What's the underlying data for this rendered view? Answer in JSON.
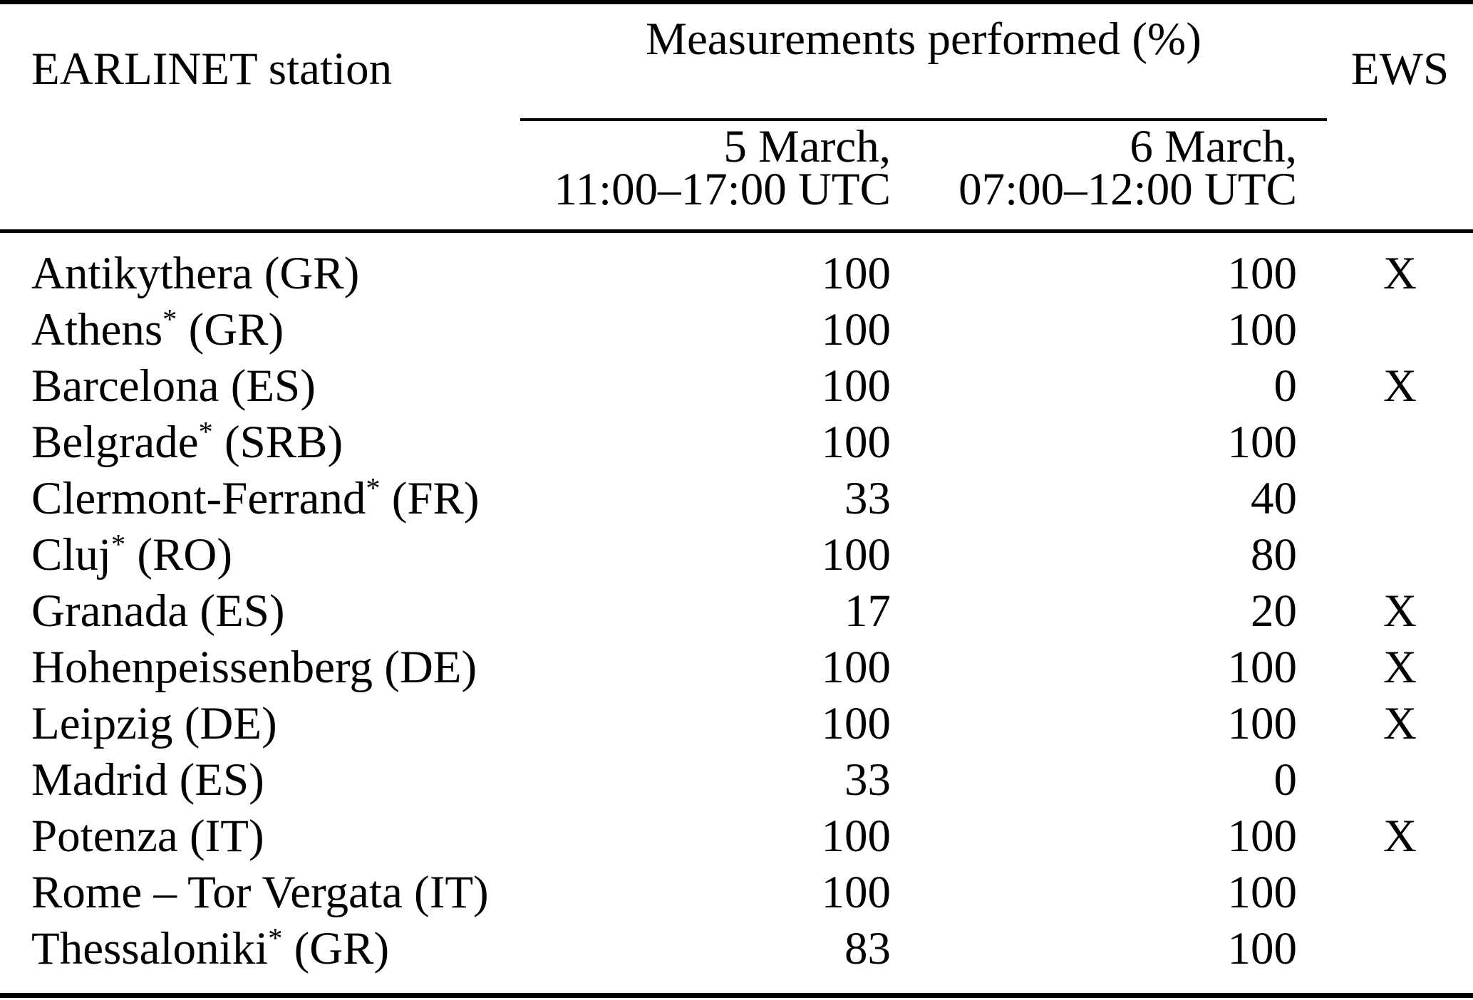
{
  "colors": {
    "background": "#ffffff",
    "text": "#000000",
    "rule": "#000000"
  },
  "table": {
    "header": {
      "station_column": "EARLINET station",
      "group_column": "Measurements performed (%)",
      "march5_line1": "5 March,",
      "march5_line2": "11:00–17:00 UTC",
      "march6_line1": "6 March,",
      "march6_line2": "07:00–12:00 UTC",
      "ews_column": "EWS"
    },
    "rows": [
      {
        "station": "Antikythera (GR)",
        "march5": 100,
        "march6": 100,
        "ews": "X"
      },
      {
        "station": "Athens* (GR)",
        "march5": 100,
        "march6": 100,
        "ews": ""
      },
      {
        "station": "Barcelona (ES)",
        "march5": 100,
        "march6": 0,
        "ews": "X"
      },
      {
        "station": "Belgrade* (SRB)",
        "march5": 100,
        "march6": 100,
        "ews": ""
      },
      {
        "station": "Clermont-Ferrand* (FR)",
        "march5": 33,
        "march6": 40,
        "ews": ""
      },
      {
        "station": "Cluj* (RO)",
        "march5": 100,
        "march6": 80,
        "ews": ""
      },
      {
        "station": "Granada (ES)",
        "march5": 17,
        "march6": 20,
        "ews": "X"
      },
      {
        "station": "Hohenpeissenberg (DE)",
        "march5": 100,
        "march6": 100,
        "ews": "X"
      },
      {
        "station": "Leipzig (DE)",
        "march5": 100,
        "march6": 100,
        "ews": "X"
      },
      {
        "station": "Madrid (ES)",
        "march5": 33,
        "march6": 0,
        "ews": ""
      },
      {
        "station": "Potenza (IT)",
        "march5": 100,
        "march6": 100,
        "ews": "X"
      },
      {
        "station": "Rome – Tor Vergata (IT)",
        "march5": 100,
        "march6": 100,
        "ews": ""
      },
      {
        "station": "Thessaloniki* (GR)",
        "march5": 83,
        "march6": 100,
        "ews": ""
      }
    ]
  }
}
